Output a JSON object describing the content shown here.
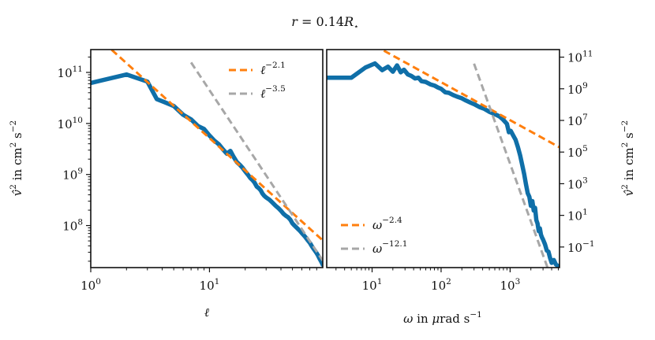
{
  "chart_data": [
    {
      "panel": "left",
      "type": "line",
      "title": "r = 0.14R⋆",
      "xlabel": "ℓ",
      "ylabel": "v̂² in cm² s⁻²",
      "xscale": "log",
      "yscale": "log",
      "xlim": [
        1,
        90
      ],
      "ylim": [
        15000000.0,
        280000000000.0
      ],
      "xticks": [
        {
          "value": 1,
          "label": "10^0"
        },
        {
          "value": 10,
          "label": "10^1"
        }
      ],
      "yticks": [
        {
          "value": 100000000.0,
          "label": "10^8"
        },
        {
          "value": 1000000000.0,
          "label": "10^9"
        },
        {
          "value": 10000000000.0,
          "label": "10^10"
        },
        {
          "value": 100000000000.0,
          "label": "10^11"
        }
      ],
      "ytick_side": "left",
      "legend_position": "top-right",
      "series": [
        {
          "role": "data",
          "color": "#0f6fa8",
          "width": 5.5,
          "x": [
            1,
            2,
            3,
            3.6,
            4.2,
            5,
            6,
            7,
            8,
            9,
            10,
            11,
            12,
            13,
            14,
            15,
            16,
            17,
            18,
            19,
            20,
            21,
            22,
            23,
            24,
            25,
            26,
            27,
            28,
            29,
            30,
            32,
            34,
            36,
            38,
            40,
            42,
            44,
            46,
            48,
            50,
            52,
            55,
            58,
            61,
            64,
            67,
            70,
            73,
            76,
            79,
            82,
            85,
            88,
            90
          ],
          "y": [
            62000000000.0,
            91000000000.0,
            66000000000.0,
            30000000000.0,
            26000000000.0,
            22000000000.0,
            14800000000.0,
            12000000000.0,
            8900000000.0,
            7800000000.0,
            5800000000.0,
            4600000000.0,
            3900000000.0,
            3100000000.0,
            2550000000.0,
            2900000000.0,
            2200000000.0,
            1750000000.0,
            1550000000.0,
            1350000000.0,
            1150000000.0,
            1000000000.0,
            860000000.0,
            780000000.0,
            690000000.0,
            580000000.0,
            540000000.0,
            490000000.0,
            420000000.0,
            380000000.0,
            355000000.0,
            320000000.0,
            280000000.0,
            245000000.0,
            220000000.0,
            195000000.0,
            170000000.0,
            155000000.0,
            145000000.0,
            130000000.0,
            110000000.0,
            100000000.0,
            88000000.0,
            78000000.0,
            68000000.0,
            60000000.0,
            52000000.0,
            46000000.0,
            39000000.0,
            34000000.0,
            30000000.0,
            26000000.0,
            22000000.0,
            19000000.0,
            17000000.0
          ]
        },
        {
          "role": "fit",
          "name": "ℓ^-2.1",
          "label_base": "ℓ",
          "label_exp": "−2.1",
          "color": "#ff7f0e",
          "dash": "9,5",
          "width": 3,
          "slope": -2.1,
          "x": [
            1.5,
            90
          ],
          "y_at_1": 650000000000.0
        },
        {
          "role": "fit",
          "name": "ℓ^-3.5",
          "label_base": "ℓ",
          "label_exp": "−3.5",
          "color": "#a7a7a7",
          "dash": "9,5",
          "width": 3,
          "slope": -3.5,
          "x": [
            7,
            90
          ],
          "y_at_1": 142000000000000.0
        }
      ]
    },
    {
      "panel": "right",
      "type": "line",
      "xlabel": "ω in μrad s⁻¹",
      "ylabel": "v̂² in cm² s⁻²",
      "xscale": "log",
      "yscale": "log",
      "xlim": [
        2.2,
        5200
      ],
      "ylim": [
        0.005,
        300000000000.0
      ],
      "xticks": [
        {
          "value": 10,
          "label": "10^1"
        },
        {
          "value": 100,
          "label": "10^2"
        },
        {
          "value": 1000,
          "label": "10^3"
        }
      ],
      "yticks": [
        {
          "value": 100000000000.0,
          "label": "10^11"
        },
        {
          "value": 1000000000.0,
          "label": "10^9"
        },
        {
          "value": 10000000.0,
          "label": "10^7"
        },
        {
          "value": 100000.0,
          "label": "10^5"
        },
        {
          "value": 1000.0,
          "label": "10^3"
        },
        {
          "value": 10.0,
          "label": "10^1"
        },
        {
          "value": 0.1,
          "label": "10^−1"
        }
      ],
      "ytick_side": "right",
      "legend_position": "bottom-left",
      "series": [
        {
          "role": "data",
          "color": "#0f6fa8",
          "width": 5.5,
          "x": [
            2.2,
            5,
            8,
            11,
            14,
            17,
            20,
            23,
            26,
            29,
            33,
            37,
            42,
            47,
            52,
            60,
            70,
            80,
            90,
            100,
            115,
            130,
            150,
            170,
            200,
            230,
            270,
            310,
            360,
            420,
            500,
            600,
            700,
            780,
            850,
            900,
            960,
            1020,
            1100,
            1200,
            1300,
            1400,
            1500,
            1600,
            1700,
            1800,
            1900,
            2000,
            2100,
            2200,
            2300,
            2400,
            2500,
            2600,
            2700,
            2800,
            2900,
            3000,
            3200,
            3400,
            3600,
            3800,
            4000,
            4300,
            4600,
            5000
          ],
          "y": [
            5000000000.0,
            5000000000.0,
            22000000000.0,
            40000000000.0,
            15000000000.0,
            25000000000.0,
            12000000000.0,
            30000000000.0,
            11000000000.0,
            16000000000.0,
            8000000000.0,
            6500000000.0,
            4500000000.0,
            5000000000.0,
            3000000000.0,
            2700000000.0,
            1900000000.0,
            1600000000.0,
            1200000000.0,
            1000000000.0,
            600000000.0,
            550000000.0,
            400000000.0,
            320000000.0,
            250000000.0,
            180000000.0,
            130000000.0,
            100000000.0,
            70000000.0,
            55000000.0,
            35000000.0,
            25000000.0,
            18000000.0,
            12000000.0,
            8000000.0,
            6000000.0,
            1800000.0,
            2200000.0,
            1200000.0,
            600000.0,
            200000.0,
            60000.0,
            15000.0,
            4000.0,
            900,
            250,
            150,
            40,
            80,
            20,
            30,
            5,
            3,
            1,
            1.5,
            0.6,
            0.4,
            0.3,
            0.15,
            0.06,
            0.05,
            0.02,
            0.01,
            0.015,
            0.008,
            0.006
          ]
        },
        {
          "role": "fit",
          "name": "ω^-2.4",
          "label_base": "ω",
          "label_exp": "−2.4",
          "color": "#ff7f0e",
          "dash": "9,5",
          "width": 3,
          "slope": -2.4,
          "x": [
            14.8,
            5200
          ],
          "y_at_1": 165000000000000.0
        },
        {
          "role": "fit",
          "name": "ω^-12.1",
          "label_base": "ω",
          "label_exp": "−12.1",
          "color": "#a7a7a7",
          "dash": "9,5",
          "width": 3,
          "slope": -12.1,
          "x": [
            300,
            5200
          ],
          "y_at_1": 3.64e+40
        }
      ]
    }
  ]
}
